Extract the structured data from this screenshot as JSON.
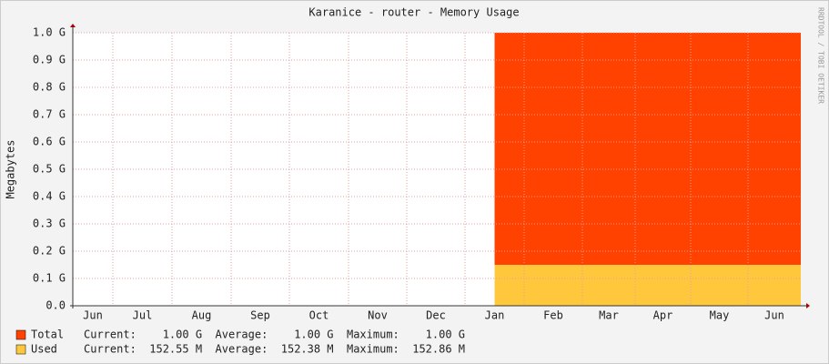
{
  "chart_data": {
    "type": "area",
    "title": "Karanice - router - Memory Usage",
    "y_label": "Megabytes",
    "watermark": "RRDTOOL / TOBI OETIKER",
    "categories": [
      "Jun",
      "Jul",
      "Aug",
      "Sep",
      "Oct",
      "Nov",
      "Dec",
      "Jan",
      "Feb",
      "Mar",
      "Apr",
      "May",
      "Jun"
    ],
    "series": [
      {
        "name": "Total",
        "color": "#ff4200",
        "values": [
          null,
          null,
          null,
          null,
          null,
          null,
          null,
          1.0,
          1.0,
          1.0,
          1.0,
          1.0,
          1.0
        ],
        "stats": "Current:    1.00 G  Average:    1.00 G  Maximum:    1.00 G"
      },
      {
        "name": "Used",
        "color": "#ffc83c",
        "values": [
          null,
          null,
          null,
          null,
          null,
          null,
          null,
          0.15,
          0.15,
          0.15,
          0.15,
          0.15,
          0.15
        ],
        "stats": "Current:  152.55 M  Average:  152.38 M  Maximum:  152.86 M"
      }
    ],
    "ylim": [
      0,
      1.0
    ],
    "yticks": [
      {
        "value": 0,
        "label": "0.0"
      },
      {
        "value": 0.1,
        "label": "0.1 G"
      },
      {
        "value": 0.2,
        "label": "0.2 G"
      },
      {
        "value": 0.3,
        "label": "0.3 G"
      },
      {
        "value": 0.4,
        "label": "0.4 G"
      },
      {
        "value": 0.5,
        "label": "0.5 G"
      },
      {
        "value": 0.6,
        "label": "0.6 G"
      },
      {
        "value": 0.7,
        "label": "0.7 G"
      },
      {
        "value": 0.8,
        "label": "0.8 G"
      },
      {
        "value": 0.9,
        "label": "0.9 G"
      },
      {
        "value": 1.0,
        "label": "1.0 G"
      }
    ],
    "grid": true
  }
}
